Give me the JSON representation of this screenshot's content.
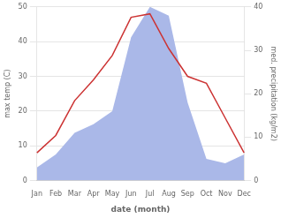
{
  "chart_data": {
    "type": "line",
    "xlabel": "date (month)",
    "ylabel": "max temp (C)",
    "y2label": "med. precipitation (kg/m2)",
    "categories": [
      "Jan",
      "Feb",
      "Mar",
      "Apr",
      "May",
      "Jun",
      "Jul",
      "Aug",
      "Sep",
      "Oct",
      "Nov",
      "Dec"
    ],
    "series": [
      {
        "type": "line",
        "color": "#cc3333",
        "values": [
          8,
          13,
          23,
          29,
          36,
          47,
          48,
          38,
          30,
          28,
          18,
          8
        ]
      },
      {
        "type": "area",
        "color": "#aab8e8",
        "axis": "y2",
        "values": [
          3,
          6,
          11,
          13,
          16,
          33,
          40,
          38,
          18,
          5,
          4,
          6
        ]
      }
    ],
    "ylim": [
      0,
      50
    ],
    "yticks": [
      0,
      10,
      20,
      30,
      40,
      50
    ],
    "y2lim": [
      0,
      40
    ],
    "y2ticks": [
      0,
      10,
      20,
      30,
      40
    ],
    "grid": true
  }
}
